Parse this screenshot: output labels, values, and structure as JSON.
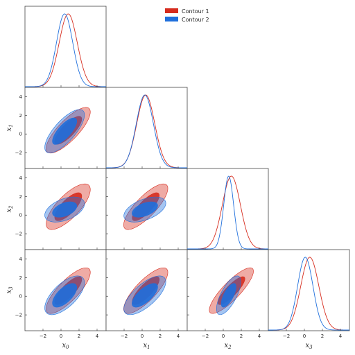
{
  "chart_data": {
    "type": "corner",
    "parameters": [
      "x0",
      "x1",
      "x2",
      "x3"
    ],
    "axis_labels": [
      {
        "base": "x",
        "sub": "0"
      },
      {
        "base": "x",
        "sub": "1"
      },
      {
        "base": "x",
        "sub": "2"
      },
      {
        "base": "x",
        "sub": "3"
      }
    ],
    "xlim": [
      -4,
      5
    ],
    "ylim": [
      -3.7,
      5
    ],
    "x_ticks": [
      -2,
      0,
      2,
      4
    ],
    "y_ticks": [
      -2,
      0,
      2,
      4
    ],
    "tick_labels": [
      "−2",
      "0",
      "2",
      "4"
    ],
    "legend": {
      "placement": "top-center",
      "entries": [
        {
          "name": "Contour 1",
          "color": "#d62c1e"
        },
        {
          "name": "Contour 2",
          "color": "#1f6fdc"
        }
      ]
    },
    "series": [
      {
        "name": "Contour 1",
        "color": "#d62c1e",
        "means": [
          0.8,
          0.4,
          0.9,
          0.6
        ],
        "sigmas": [
          1.0,
          1.0,
          1.0,
          1.0
        ],
        "correlations": {
          "1_0": 0.8,
          "2_0": 0.75,
          "2_1": 0.8,
          "3_0": 0.8,
          "3_1": 0.8,
          "3_2": 0.85
        }
      },
      {
        "name": "Contour 2",
        "color": "#1f6fdc",
        "means": [
          0.4,
          0.3,
          0.6,
          0.1
        ],
        "sigmas": [
          0.9,
          0.95,
          0.55,
          0.85
        ],
        "correlations": {
          "1_0": 0.75,
          "2_0": 0.45,
          "2_1": 0.5,
          "3_0": 0.65,
          "3_1": 0.7,
          "3_2": 0.7
        }
      }
    ]
  }
}
